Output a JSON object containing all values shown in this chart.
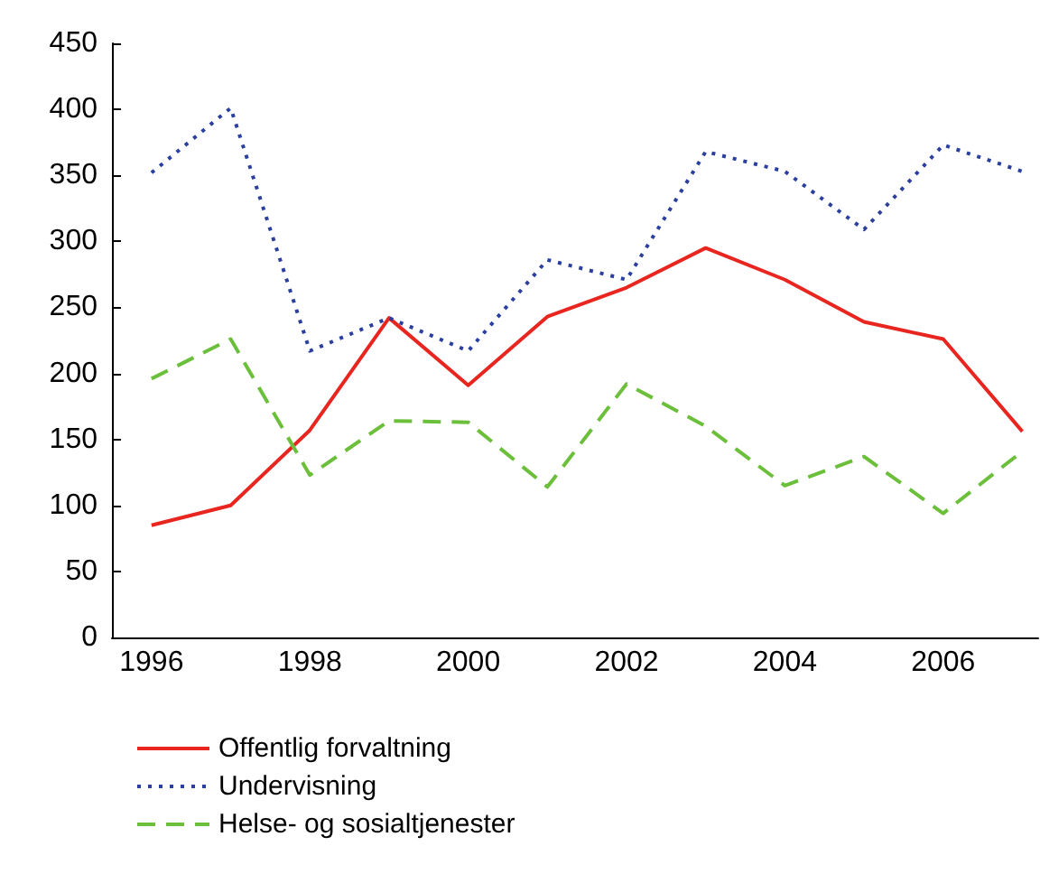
{
  "chart_data": {
    "type": "line",
    "x": [
      1996,
      1997,
      1998,
      1999,
      2000,
      2001,
      2002,
      2003,
      2004,
      2005,
      2006,
      2007
    ],
    "series": [
      {
        "name": "Offentlig forvaltning",
        "color": "#e8251f",
        "line_style": "solid",
        "values": [
          85,
          100,
          157,
          242,
          191,
          243,
          265,
          295,
          271,
          239,
          226,
          156
        ]
      },
      {
        "name": "Undervisning",
        "color": "#2a3f9e",
        "line_style": "dotted",
        "values": [
          352,
          401,
          217,
          242,
          217,
          286,
          271,
          368,
          353,
          309,
          373,
          353
        ]
      },
      {
        "name": "Helse- og sosialtjenester",
        "color": "#6cbf3a",
        "line_style": "dashed",
        "values": [
          196,
          226,
          123,
          164,
          163,
          114,
          192,
          160,
          115,
          137,
          94,
          141
        ]
      }
    ],
    "xlim": [
      1995.5,
      2007.2
    ],
    "xticks": [
      1996,
      1998,
      2000,
      2002,
      2004,
      2006
    ],
    "ylim": [
      0,
      450
    ],
    "yticks": [
      0,
      50,
      100,
      150,
      200,
      250,
      300,
      350,
      400,
      450
    ],
    "grid": false,
    "legend": "bottom left",
    "marker": "none"
  }
}
